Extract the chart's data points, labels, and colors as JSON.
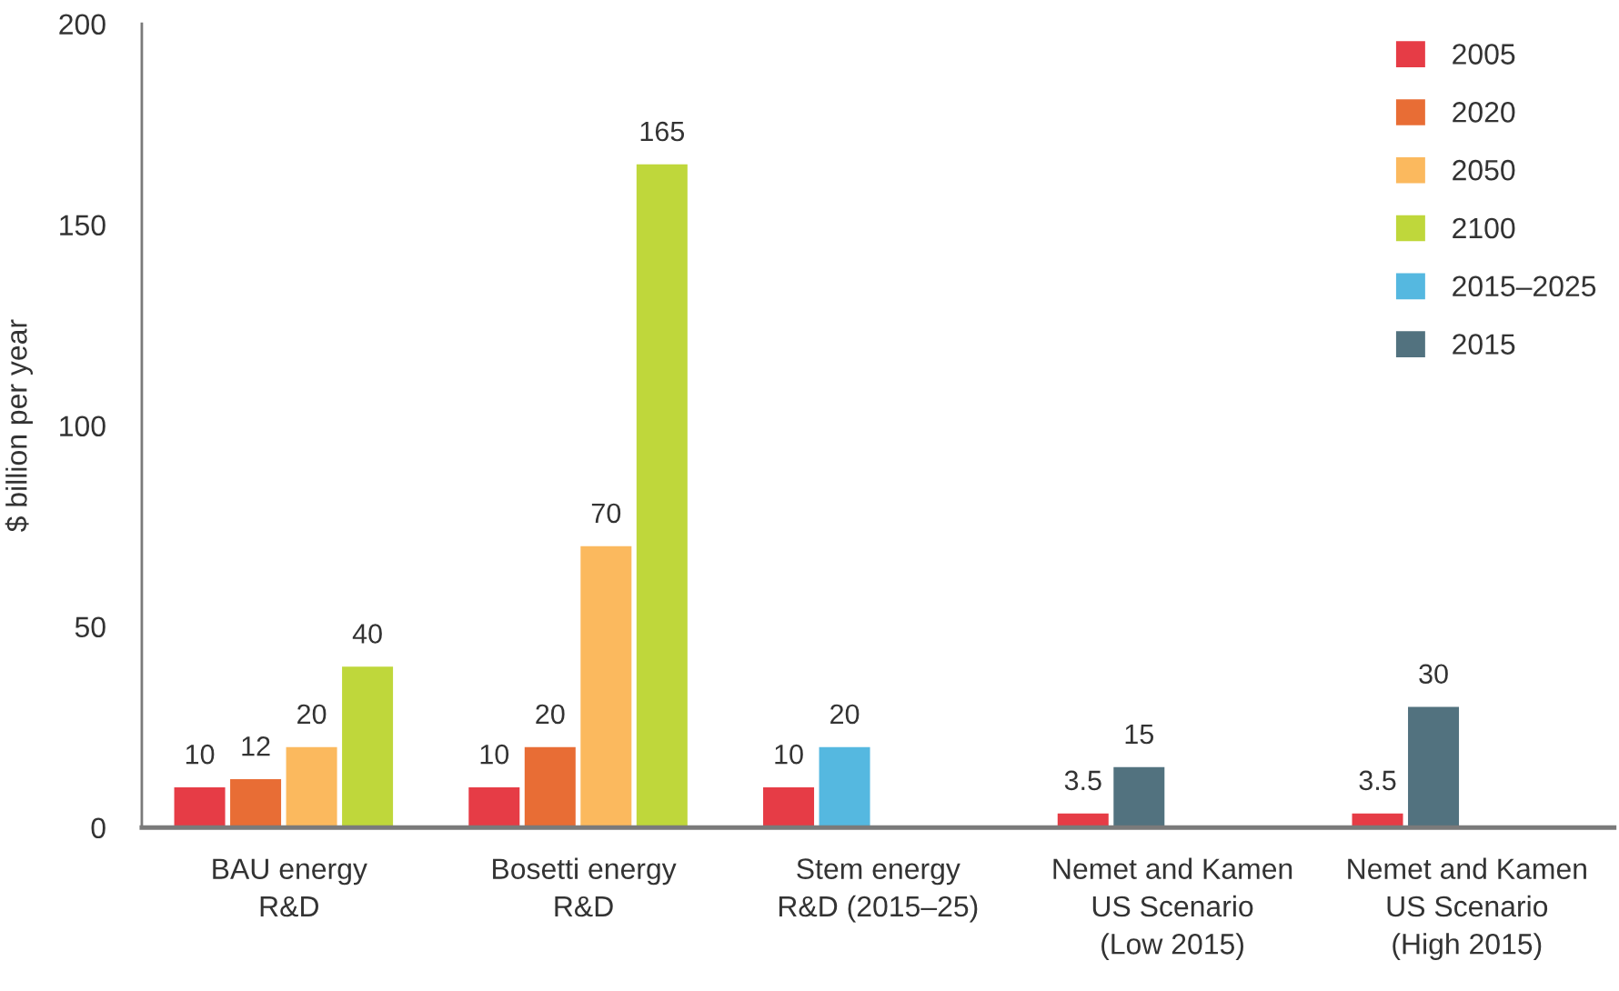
{
  "chart_data": {
    "type": "bar",
    "ylabel": "$ billion per year",
    "categories": [
      "BAU energy\nR&D",
      "Bosetti energy\nR&D",
      "Stem energy\nR&D (2015–25)",
      "Nemet and Kamen\nUS Scenario\n(Low 2015)",
      "Nemet and Kamen\nUS Scenario\n(High 2015)"
    ],
    "series": [
      {
        "name": "2005",
        "color": "#e63c46",
        "values": [
          10,
          10,
          10,
          3.5,
          3.5
        ]
      },
      {
        "name": "2020",
        "color": "#e86d35",
        "values": [
          12,
          20,
          null,
          null,
          null
        ]
      },
      {
        "name": "2050",
        "color": "#fbb95e",
        "values": [
          20,
          70,
          null,
          null,
          null
        ]
      },
      {
        "name": "2100",
        "color": "#bfd73b",
        "values": [
          40,
          165,
          null,
          null,
          null
        ]
      },
      {
        "name": "2015–2025",
        "color": "#55b8e0",
        "values": [
          null,
          null,
          20,
          null,
          null
        ]
      },
      {
        "name": "2015",
        "color": "#52727f",
        "values": [
          null,
          null,
          null,
          15,
          30
        ]
      }
    ],
    "ylim": [
      0,
      200
    ],
    "yticks": [
      0,
      50,
      100,
      150,
      200
    ],
    "data_labels": true,
    "grid": false,
    "legend": "top right"
  }
}
